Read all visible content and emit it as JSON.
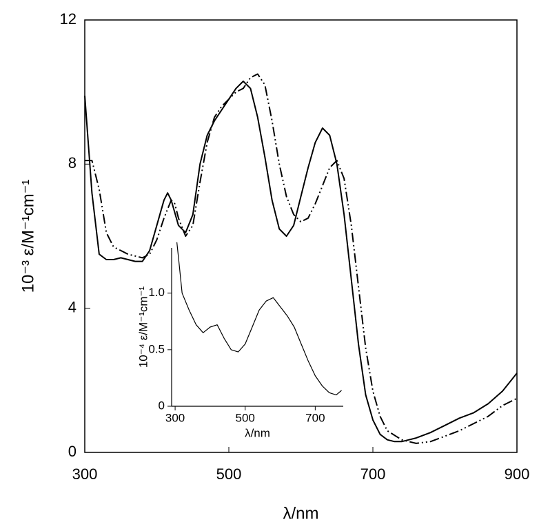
{
  "chart_data": [
    {
      "type": "line",
      "xlabel": "λ/nm",
      "ylabel": "10⁻³ ε/M⁻¹cm⁻¹",
      "xlim": [
        300,
        900
      ],
      "ylim": [
        0,
        12
      ],
      "xticks": [
        300,
        500,
        700,
        900
      ],
      "yticks": [
        0,
        4,
        8,
        12
      ],
      "series": [
        {
          "color": "#000000",
          "style": "solid",
          "x": [
            300,
            310,
            320,
            330,
            340,
            350,
            360,
            370,
            380,
            390,
            400,
            410,
            415,
            420,
            430,
            440,
            450,
            460,
            470,
            480,
            490,
            500,
            510,
            520,
            530,
            540,
            550,
            560,
            570,
            580,
            590,
            600,
            610,
            620,
            630,
            640,
            650,
            660,
            670,
            680,
            690,
            700,
            710,
            720,
            730,
            740,
            750,
            760,
            780,
            800,
            820,
            840,
            860,
            880,
            900
          ],
          "values": [
            9.9,
            7.2,
            5.5,
            5.35,
            5.35,
            5.4,
            5.35,
            5.3,
            5.3,
            5.6,
            6.3,
            7.0,
            7.2,
            7.0,
            6.3,
            6.1,
            6.6,
            8.0,
            8.8,
            9.2,
            9.5,
            9.8,
            10.1,
            10.3,
            10.1,
            9.3,
            8.2,
            7.0,
            6.2,
            6.0,
            6.3,
            7.1,
            7.9,
            8.6,
            9.0,
            8.8,
            8.0,
            6.6,
            4.8,
            3.0,
            1.6,
            0.9,
            0.5,
            0.35,
            0.3,
            0.3,
            0.35,
            0.4,
            0.55,
            0.75,
            0.95,
            1.1,
            1.35,
            1.7,
            2.2
          ]
        },
        {
          "color": "#000000",
          "style": "dash-dot-dot",
          "x": [
            300,
            310,
            320,
            330,
            340,
            350,
            360,
            380,
            390,
            400,
            410,
            420,
            425,
            430,
            440,
            450,
            460,
            470,
            480,
            490,
            500,
            510,
            520,
            530,
            540,
            550,
            560,
            570,
            580,
            590,
            600,
            610,
            620,
            630,
            640,
            650,
            660,
            670,
            680,
            690,
            700,
            710,
            720,
            740,
            760,
            780,
            800,
            820,
            840,
            860,
            880,
            900
          ],
          "values": [
            8.1,
            8.1,
            7.3,
            6.1,
            5.7,
            5.6,
            5.5,
            5.4,
            5.5,
            5.9,
            6.5,
            7.0,
            6.9,
            6.5,
            6.0,
            6.3,
            7.5,
            8.6,
            9.3,
            9.6,
            9.8,
            10.0,
            10.1,
            10.4,
            10.5,
            10.2,
            9.2,
            8.0,
            7.1,
            6.6,
            6.4,
            6.5,
            6.9,
            7.4,
            7.9,
            8.1,
            7.6,
            6.3,
            4.6,
            2.9,
            1.7,
            1.0,
            0.6,
            0.35,
            0.25,
            0.3,
            0.45,
            0.6,
            0.8,
            1.0,
            1.3,
            1.5
          ]
        }
      ]
    },
    {
      "type": "line",
      "xlabel": "λ/nm",
      "ylabel": "10⁻⁴ ε/M⁻¹cm⁻¹",
      "xlim": [
        290,
        780
      ],
      "ylim": [
        0,
        1.4
      ],
      "xticks": [
        300,
        500,
        700
      ],
      "yticks": [
        0,
        0.5,
        {
          "value": 1,
          "label": "1.0"
        }
      ],
      "series": [
        {
          "color": "#000000",
          "style": "solid",
          "x": [
            305,
            310,
            315,
            320,
            340,
            360,
            380,
            400,
            420,
            440,
            460,
            480,
            500,
            520,
            540,
            560,
            580,
            600,
            620,
            640,
            660,
            680,
            700,
            720,
            740,
            760,
            775
          ],
          "values": [
            1.45,
            1.3,
            1.15,
            1.0,
            0.85,
            0.72,
            0.65,
            0.7,
            0.72,
            0.6,
            0.5,
            0.48,
            0.55,
            0.7,
            0.85,
            0.93,
            0.96,
            0.88,
            0.8,
            0.7,
            0.55,
            0.4,
            0.27,
            0.18,
            0.12,
            0.1,
            0.14
          ]
        }
      ]
    }
  ]
}
